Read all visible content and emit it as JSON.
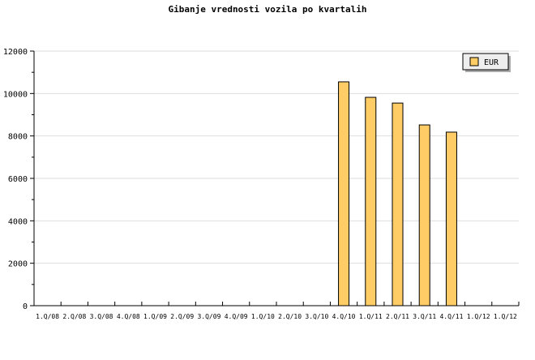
{
  "chart_data": {
    "type": "bar",
    "title": "Gibanje vrednosti vozila po kvartalih",
    "xlabel": "",
    "ylabel": "",
    "categories": [
      "1.Q/08",
      "2.Q/08",
      "3.Q/08",
      "4.Q/08",
      "1.Q/09",
      "2.Q/09",
      "3.Q/09",
      "4.Q/09",
      "1.Q/10",
      "2.Q/10",
      "3.Q/10",
      "4.Q/10",
      "1.Q/11",
      "2.Q/11",
      "3.Q/11",
      "4.Q/11",
      "1.Q/12",
      "1.Q/12"
    ],
    "series": [
      {
        "name": "EUR",
        "values": [
          0,
          0,
          0,
          0,
          0,
          0,
          0,
          0,
          0,
          0,
          0,
          10550,
          9820,
          9550,
          8520,
          8180,
          0,
          0
        ]
      }
    ],
    "ylim": [
      0,
      12000
    ],
    "yticks": [
      0,
      2000,
      4000,
      6000,
      8000,
      10000,
      12000
    ],
    "grid": true,
    "legend": "top-right",
    "colors": {
      "bar": "#ffcc66",
      "grid": "#dddddd",
      "legend_bg": "#eeeeee",
      "legend_shadow": "#aaaaaa"
    }
  }
}
